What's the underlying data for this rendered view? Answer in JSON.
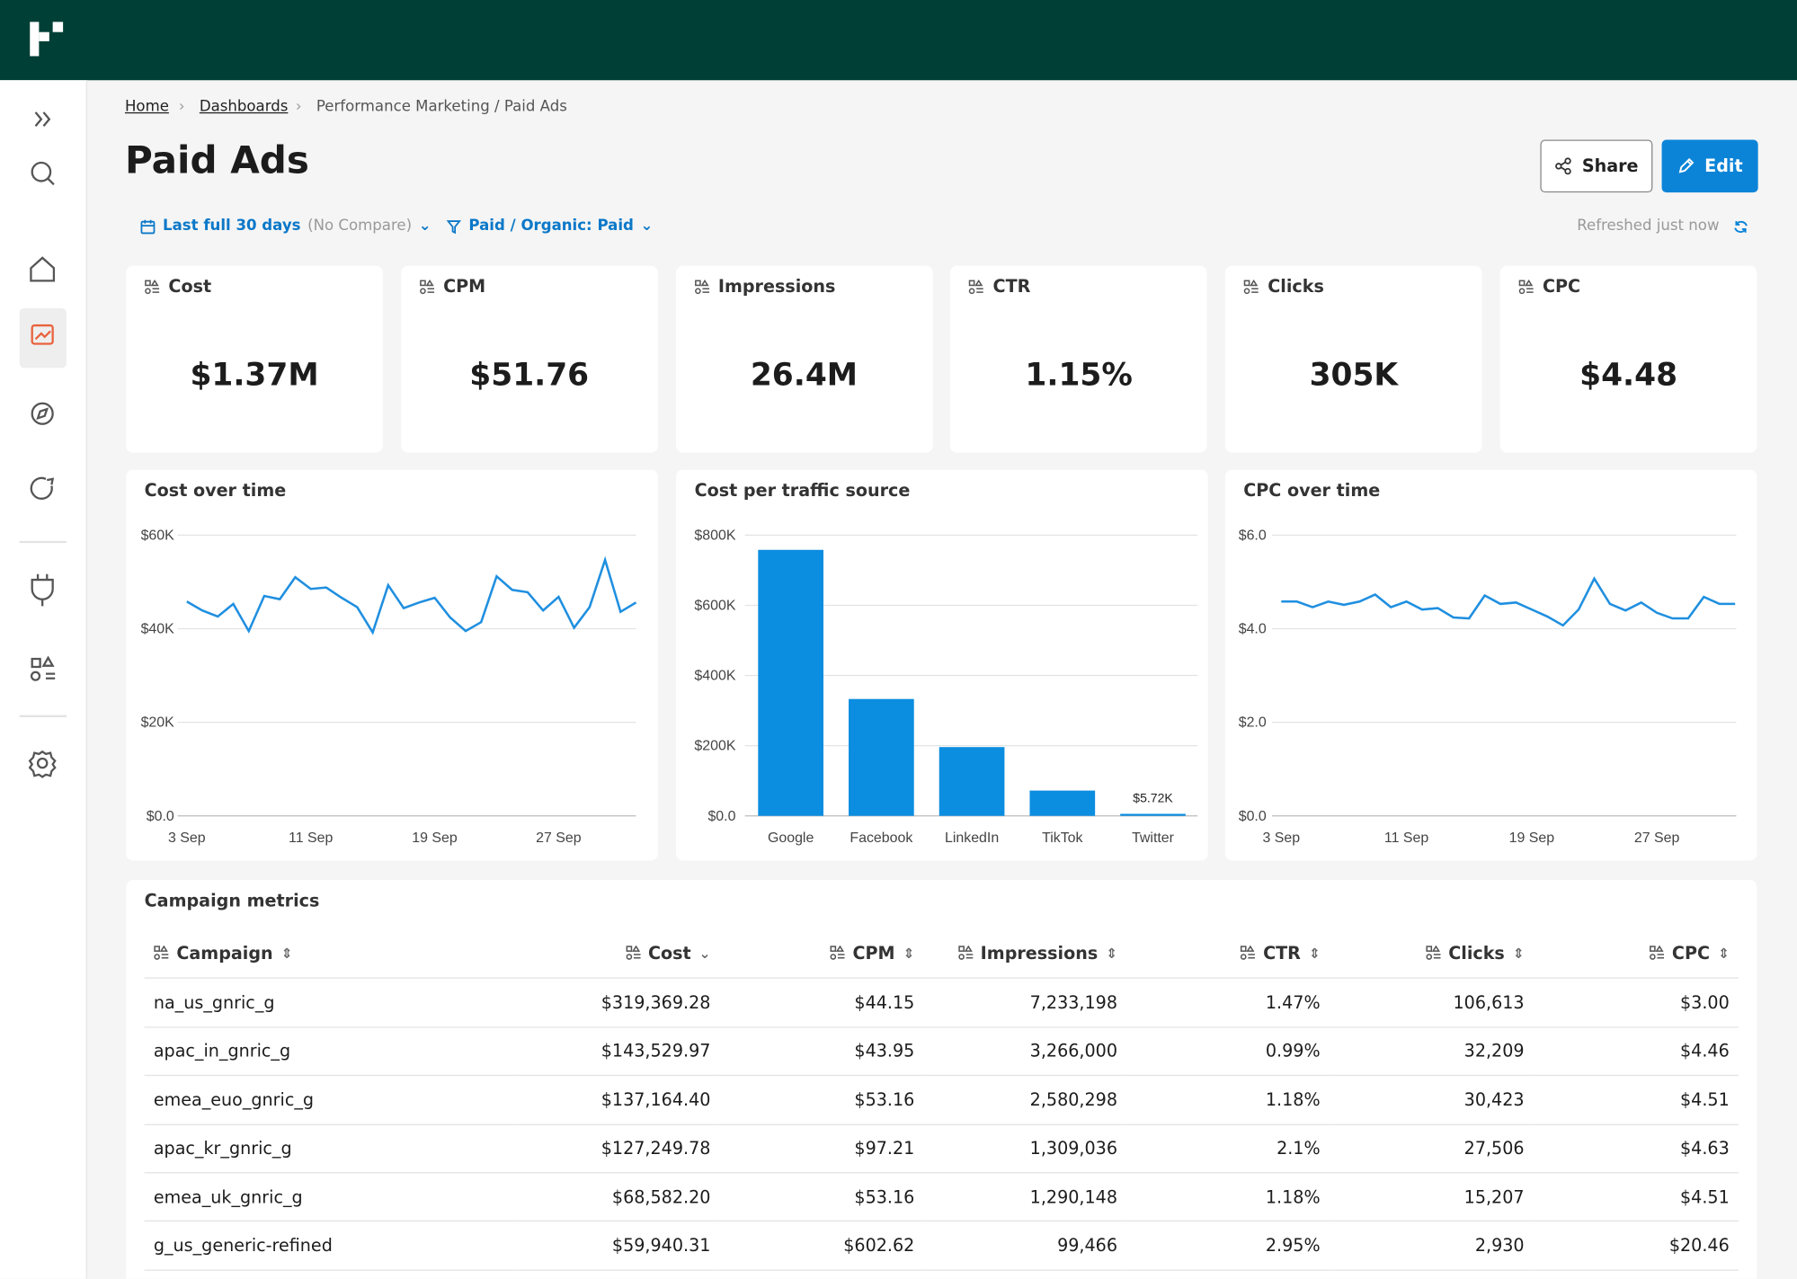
{
  "breadcrumb": [
    "Home",
    "Dashboards",
    "Performance Marketing / Paid Ads"
  ],
  "header": {
    "title": "Paid Ads",
    "share": "Share",
    "edit": "Edit"
  },
  "filters": {
    "date": "Last full 30 days",
    "compare": "(No Compare)",
    "segment": "Paid / Organic: Paid",
    "refreshed": "Refreshed just now"
  },
  "kpis": [
    {
      "label": "Cost",
      "value": "$1.37M"
    },
    {
      "label": "CPM",
      "value": "$51.76"
    },
    {
      "label": "Impressions",
      "value": "26.4M"
    },
    {
      "label": "CTR",
      "value": "1.15%"
    },
    {
      "label": "Clicks",
      "value": "305K"
    },
    {
      "label": "CPC",
      "value": "$4.48"
    }
  ],
  "chart_data": [
    {
      "type": "line",
      "title": "Cost over time",
      "color": "#1f8fe0",
      "grid": true,
      "categories": [
        "3 Sep",
        null,
        null,
        null,
        null,
        null,
        null,
        null,
        "11 Sep",
        null,
        null,
        null,
        null,
        null,
        null,
        null,
        "19 Sep",
        null,
        null,
        null,
        null,
        null,
        null,
        null,
        "27 Sep",
        null,
        null,
        null,
        null,
        null
      ],
      "values": [
        45800,
        43900,
        42600,
        45300,
        39500,
        47000,
        46300,
        51000,
        48500,
        48800,
        46600,
        44600,
        39200,
        49300,
        44400,
        45600,
        46600,
        42400,
        39500,
        41400,
        51200,
        48300,
        47800,
        43900,
        46800,
        40200,
        44600,
        54700,
        43600,
        45600
      ],
      "ylim": [
        0,
        60000
      ],
      "yticks": [
        {
          "value": 0,
          "label": "$0.0"
        },
        {
          "value": 20000,
          "label": "$20K"
        },
        {
          "value": 40000,
          "label": "$40K"
        },
        {
          "value": 60000,
          "label": "$60K"
        }
      ]
    },
    {
      "type": "bar",
      "title": "Cost per traffic source",
      "color": "#0b8de0",
      "grid": true,
      "categories": [
        "Google",
        "Facebook",
        "LinkedIn",
        "TikTok",
        "Twitter"
      ],
      "values": [
        758000,
        333000,
        196000,
        72000,
        5720
      ],
      "value_labels": [
        null,
        null,
        null,
        null,
        "$5.72K"
      ],
      "ylim": [
        0,
        800000
      ],
      "yticks": [
        {
          "value": 0,
          "label": "$0.0"
        },
        {
          "value": 200000,
          "label": "$200K"
        },
        {
          "value": 400000,
          "label": "$400K"
        },
        {
          "value": 600000,
          "label": "$600K"
        },
        {
          "value": 800000,
          "label": "$800K"
        }
      ]
    },
    {
      "type": "line",
      "title": "CPC over time",
      "color": "#1f8fe0",
      "grid": true,
      "categories": [
        "3 Sep",
        null,
        null,
        null,
        null,
        null,
        null,
        null,
        "11 Sep",
        null,
        null,
        null,
        null,
        null,
        null,
        null,
        "19 Sep",
        null,
        null,
        null,
        null,
        null,
        null,
        null,
        "27 Sep",
        null,
        null,
        null,
        null,
        null
      ],
      "values": [
        4.58,
        4.58,
        4.46,
        4.58,
        4.51,
        4.58,
        4.73,
        4.46,
        4.58,
        4.41,
        4.44,
        4.24,
        4.22,
        4.71,
        4.53,
        4.56,
        4.41,
        4.26,
        4.07,
        4.41,
        5.07,
        4.53,
        4.39,
        4.56,
        4.34,
        4.22,
        4.22,
        4.68,
        4.53,
        4.53
      ],
      "ylim": [
        0,
        6
      ],
      "yticks": [
        {
          "value": 0,
          "label": "$0.0"
        },
        {
          "value": 2,
          "label": "$2.0"
        },
        {
          "value": 4,
          "label": "$4.0"
        },
        {
          "value": 6,
          "label": "$6.0"
        }
      ]
    }
  ],
  "table": {
    "title": "Campaign metrics",
    "columns": [
      "Campaign",
      "Cost",
      "CPM",
      "Impressions",
      "CTR",
      "Clicks",
      "CPC"
    ],
    "rows": [
      [
        "na_us_gnric_g",
        "$319,369.28",
        "$44.15",
        "7,233,198",
        "1.47%",
        "106,613",
        "$3.00"
      ],
      [
        "apac_in_gnric_g",
        "$143,529.97",
        "$43.95",
        "3,266,000",
        "0.99%",
        "32,209",
        "$4.46"
      ],
      [
        "emea_euo_gnric_g",
        "$137,164.40",
        "$53.16",
        "2,580,298",
        "1.18%",
        "30,423",
        "$4.51"
      ],
      [
        "apac_kr_gnric_g",
        "$127,249.78",
        "$97.21",
        "1,309,036",
        "2.1%",
        "27,506",
        "$4.63"
      ],
      [
        "emea_uk_gnric_g",
        "$68,582.20",
        "$53.16",
        "1,290,148",
        "1.18%",
        "15,207",
        "$4.51"
      ],
      [
        "g_us_generic-refined",
        "$59,940.31",
        "$602.62",
        "99,466",
        "2.95%",
        "2,930",
        "$20.46"
      ]
    ]
  }
}
